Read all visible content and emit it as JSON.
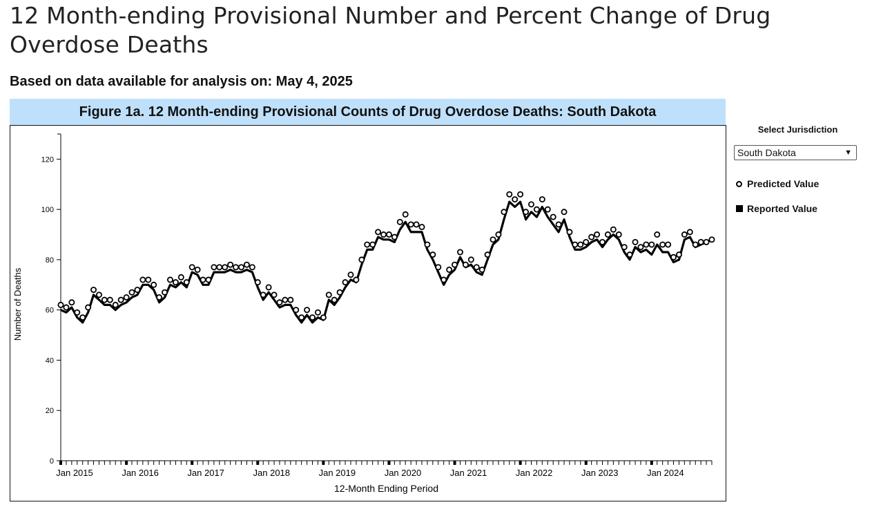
{
  "page": {
    "title": "12 Month-ending Provisional Number and Percent Change of Drug Overdose Deaths",
    "subtitle": "Based on data available for analysis on: May 4, 2025"
  },
  "figure": {
    "header": "Figure 1a. 12 Month-ending Provisional Counts of Drug Overdose Deaths: South Dakota"
  },
  "sidebar": {
    "select_label": "Select Jurisdiction",
    "selected_jurisdiction": "South Dakota",
    "legend": [
      {
        "label": "Predicted Value",
        "marker": "open-circle"
      },
      {
        "label": "Reported Value",
        "marker": "filled-square"
      }
    ]
  },
  "chart_data": {
    "type": "line",
    "title": "Figure 1a. 12 Month-ending Provisional Counts of Drug Overdose Deaths: South Dakota",
    "xlabel": "12-Month Ending Period",
    "ylabel": "Number of Deaths",
    "ylim": [
      0,
      130
    ],
    "yticks": [
      0,
      20,
      40,
      60,
      80,
      100,
      120
    ],
    "x_start": "Jan 2015",
    "x_end": "Dec 2024",
    "xtick_labels": [
      "Jan 2015",
      "Jan 2016",
      "Jan 2017",
      "Jan 2018",
      "Jan 2019",
      "Jan 2020",
      "Jan 2021",
      "Jan 2022",
      "Jan 2023",
      "Jan 2024"
    ],
    "legend_position": "right",
    "series": [
      {
        "name": "Predicted Value",
        "marker": "open-circle",
        "values": [
          62,
          61,
          63,
          59,
          57,
          61,
          68,
          66,
          64,
          64,
          62,
          64,
          65,
          67,
          68,
          72,
          72,
          70,
          65,
          67,
          72,
          71,
          73,
          71,
          77,
          76,
          72,
          72,
          77,
          77,
          77,
          78,
          77,
          77,
          78,
          77,
          71,
          66,
          69,
          66,
          63,
          64,
          64,
          60,
          57,
          60,
          57,
          59,
          57,
          66,
          64,
          67,
          71,
          74,
          72,
          80,
          86,
          86,
          91,
          90,
          90,
          89,
          95,
          98,
          94,
          94,
          93,
          86,
          82,
          77,
          72,
          76,
          78,
          83,
          78,
          80,
          77,
          76,
          82,
          88,
          90,
          99,
          106,
          104,
          106,
          99,
          102,
          100,
          104,
          100,
          97,
          94,
          99,
          91,
          86,
          86,
          87,
          89,
          90,
          87,
          90,
          92,
          90,
          85,
          82,
          87,
          85,
          86,
          86,
          90,
          86,
          86,
          81,
          82,
          90,
          91,
          86,
          87,
          87,
          88
        ]
      },
      {
        "name": "Reported Value",
        "marker": "filled-square",
        "values": [
          60,
          59,
          61,
          57,
          55,
          59,
          66,
          64,
          62,
          62,
          60,
          62,
          63,
          65,
          66,
          70,
          70,
          68,
          63,
          65,
          70,
          69,
          71,
          69,
          75,
          74,
          70,
          70,
          75,
          75,
          75,
          76,
          75,
          75,
          76,
          75,
          69,
          64,
          67,
          64,
          61,
          62,
          62,
          58,
          55,
          58,
          55,
          57,
          56,
          64,
          62,
          65,
          69,
          72,
          71,
          78,
          84,
          84,
          89,
          88,
          88,
          87,
          92,
          95,
          91,
          91,
          91,
          84,
          80,
          75,
          70,
          74,
          76,
          81,
          77,
          78,
          75,
          74,
          80,
          86,
          88,
          96,
          103,
          101,
          103,
          96,
          99,
          97,
          101,
          97,
          94,
          91,
          96,
          89,
          84,
          84,
          85,
          87,
          88,
          85,
          88,
          90,
          88,
          83,
          80,
          85,
          83,
          84,
          82,
          86,
          83,
          83,
          79,
          80,
          88,
          89,
          85,
          86,
          87,
          88
        ]
      }
    ]
  }
}
